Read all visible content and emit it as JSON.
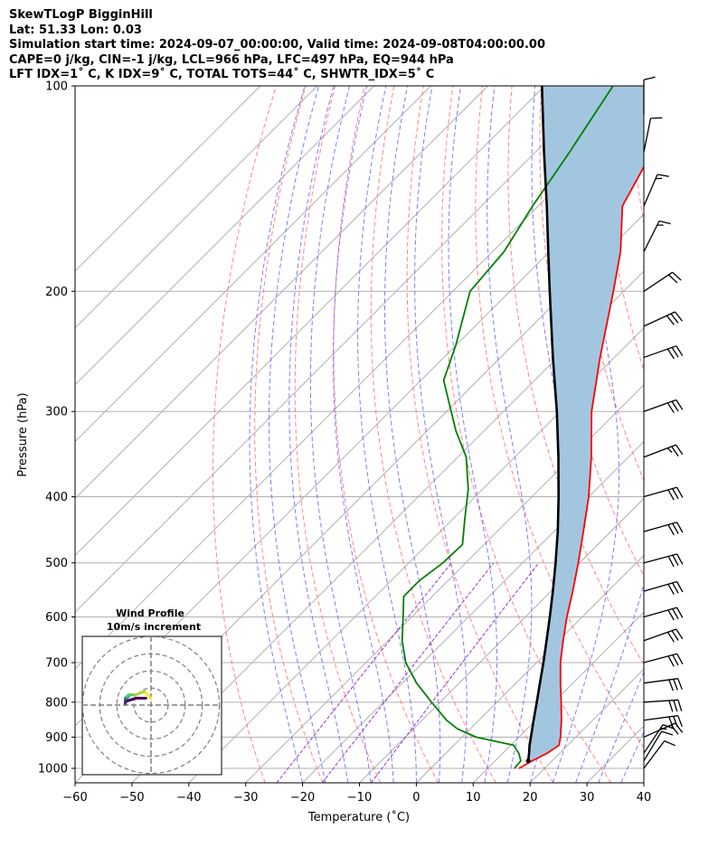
{
  "header": {
    "line1": "SkewTLogP BigginHill",
    "line2": "Lat: 51.33   Lon: 0.03",
    "line3": "Simulation start time: 2024-09-07_00:00:00, Valid time: 2024-09-08T04:00:00.00",
    "line4": "CAPE=0 j/kg, CIN=-1 j/kg, LCL=966 hPa, LFC=497 hPa, EQ=944 hPa",
    "line5": "LFT IDX=1˚ C, K IDX=9˚ C, TOTAL TOTS=44˚ C, SHWTR_IDX=5˚ C"
  },
  "chart_data": {
    "type": "line",
    "title": "SkewTLogP BigginHill",
    "xlabel": "Temperature (˚C)",
    "ylabel": "Pressure (hPa)",
    "xlim": [
      -60,
      40
    ],
    "ylim": [
      1050,
      100
    ],
    "y_scale": "log",
    "skew": true,
    "grid": true,
    "x_ticks": [
      "−60",
      "−50",
      "−40",
      "−30",
      "−20",
      "−10",
      "0",
      "10",
      "20",
      "30",
      "40"
    ],
    "y_ticks": [
      "100",
      "200",
      "300",
      "400",
      "500",
      "600",
      "700",
      "800",
      "900",
      "1000"
    ],
    "colors": {
      "temperature": "#ff0000",
      "dewpoint": "#008000",
      "parcel": "#000000",
      "shade": "#a3c6e0",
      "dry_adiabat": "#ff6666",
      "moist_adiabat": "#6666ff",
      "mixing_ratio": "#9933cc"
    },
    "series": [
      {
        "key": "temperature",
        "points": [
          [
            1000,
            15.5
          ],
          [
            975,
            16.5
          ],
          [
            950,
            17.8
          ],
          [
            925,
            18.5
          ],
          [
            900,
            17.3
          ],
          [
            850,
            14.5
          ],
          [
            800,
            11.3
          ],
          [
            750,
            7.8
          ],
          [
            700,
            4.2
          ],
          [
            650,
            0.8
          ],
          [
            600,
            -2.7
          ],
          [
            550,
            -6.2
          ],
          [
            500,
            -10.2
          ],
          [
            450,
            -14.8
          ],
          [
            400,
            -20
          ],
          [
            350,
            -26.5
          ],
          [
            300,
            -34.5
          ],
          [
            250,
            -42.5
          ],
          [
            200,
            -51.8
          ],
          [
            175,
            -57.5
          ],
          [
            150,
            -65.2
          ],
          [
            125,
            -69.5
          ],
          [
            100,
            -77
          ]
        ]
      },
      {
        "key": "dewpoint",
        "points": [
          [
            1000,
            14.7
          ],
          [
            975,
            14.5
          ],
          [
            950,
            12.8
          ],
          [
            925,
            10.5
          ],
          [
            900,
            2.5
          ],
          [
            875,
            -2.3
          ],
          [
            850,
            -5.7
          ],
          [
            800,
            -11.5
          ],
          [
            750,
            -17.5
          ],
          [
            700,
            -23
          ],
          [
            650,
            -27.5
          ],
          [
            600,
            -31.5
          ],
          [
            560,
            -35
          ],
          [
            530,
            -35
          ],
          [
            500,
            -34
          ],
          [
            470,
            -33.8
          ],
          [
            430,
            -38
          ],
          [
            390,
            -42.5
          ],
          [
            350,
            -48.5
          ],
          [
            320,
            -55
          ],
          [
            270,
            -66
          ],
          [
            240,
            -70
          ],
          [
            200,
            -77
          ],
          [
            175,
            -78
          ],
          [
            150,
            -81
          ],
          [
            125,
            -84
          ],
          [
            100,
            -88
          ]
        ]
      },
      {
        "key": "parcel",
        "points": [
          [
            975,
            15.8
          ],
          [
            950,
            14.6
          ],
          [
            925,
            13.3
          ],
          [
            900,
            12.1
          ],
          [
            850,
            9.6
          ],
          [
            800,
            7
          ],
          [
            750,
            4.2
          ],
          [
            700,
            1.2
          ],
          [
            650,
            -2.1
          ],
          [
            600,
            -5.7
          ],
          [
            550,
            -9.7
          ],
          [
            500,
            -14.2
          ],
          [
            450,
            -19.3
          ],
          [
            400,
            -25.3
          ],
          [
            350,
            -32.3
          ],
          [
            300,
            -40.6
          ],
          [
            250,
            -50.8
          ],
          [
            200,
            -63
          ],
          [
            175,
            -70.2
          ],
          [
            150,
            -78.5
          ],
          [
            125,
            -88.5
          ],
          [
            100,
            -100.5
          ]
        ]
      }
    ],
    "wind_barbs": [
      {
        "p": 1000,
        "u": -3,
        "v": -4
      },
      {
        "p": 975,
        "u": -3,
        "v": -5
      },
      {
        "p": 950,
        "u": -4,
        "v": -6
      },
      {
        "p": 900,
        "u": -9,
        "v": -4
      },
      {
        "p": 850,
        "u": -15,
        "v": -2
      },
      {
        "p": 800,
        "u": -15,
        "v": -1
      },
      {
        "p": 750,
        "u": -15,
        "v": -2
      },
      {
        "p": 700,
        "u": -15,
        "v": -4
      },
      {
        "p": 650,
        "u": -14,
        "v": -5
      },
      {
        "p": 600,
        "u": -14,
        "v": -4
      },
      {
        "p": 550,
        "u": -14,
        "v": -4
      },
      {
        "p": 500,
        "u": -15,
        "v": -4
      },
      {
        "p": 450,
        "u": -14,
        "v": -4
      },
      {
        "p": 400,
        "u": -14,
        "v": -4
      },
      {
        "p": 350,
        "u": -13,
        "v": -5
      },
      {
        "p": 300,
        "u": -14,
        "v": -5
      },
      {
        "p": 250,
        "u": -14,
        "v": -5
      },
      {
        "p": 225,
        "u": -13,
        "v": -6
      },
      {
        "p": 200,
        "u": -9,
        "v": -6
      },
      {
        "p": 175,
        "u": -4,
        "v": -8
      },
      {
        "p": 150,
        "u": -3,
        "v": -7
      },
      {
        "p": 125,
        "u": -1,
        "v": -5
      },
      {
        "p": 110,
        "u": 0,
        "v": -4
      }
    ],
    "hodograph": {
      "title": "Wind Profile",
      "subtitle": "10m/s increment",
      "rings": [
        10,
        20,
        30,
        40
      ],
      "points": [
        [
          -3,
          -4
        ],
        [
          -9,
          -4
        ],
        [
          -15,
          -2
        ],
        [
          -15,
          -1
        ],
        [
          -15,
          -2
        ],
        [
          -15,
          -4
        ],
        [
          -14,
          -5
        ],
        [
          -14,
          -4
        ],
        [
          -14,
          -4
        ],
        [
          -15,
          -4
        ],
        [
          -14,
          -4
        ],
        [
          -14,
          -4
        ],
        [
          -13,
          -5
        ],
        [
          -14,
          -5
        ],
        [
          -14,
          -5
        ],
        [
          -13,
          -6
        ],
        [
          -9,
          -6
        ],
        [
          -4,
          -8
        ],
        [
          -3,
          -7
        ],
        [
          -1,
          -5
        ],
        [
          0,
          -4
        ]
      ]
    }
  }
}
